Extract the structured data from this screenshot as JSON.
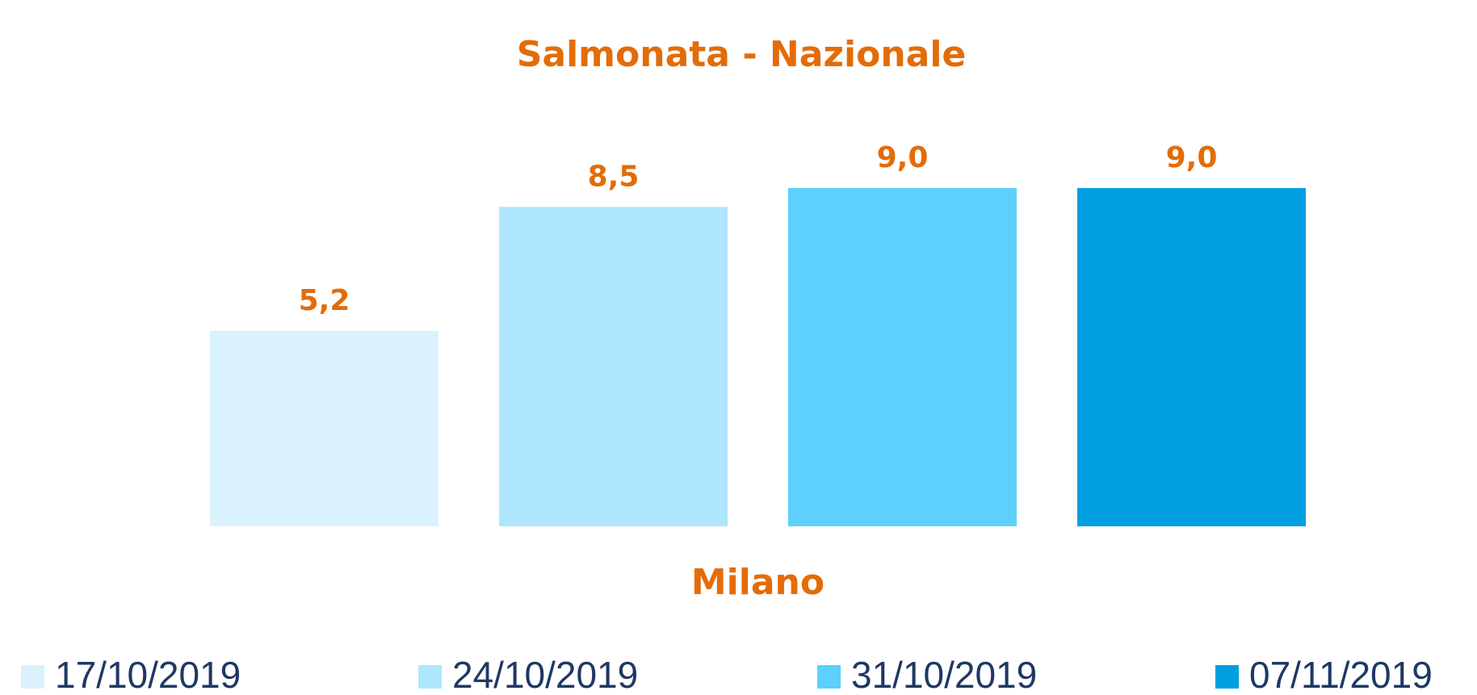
{
  "chart_data": {
    "type": "bar",
    "title": "Salmonata - Nazionale",
    "categories": [
      "Milano"
    ],
    "series": [
      {
        "name": "17/10/2019",
        "color": "#daf2fd",
        "values": [
          5.2
        ],
        "value_labels": [
          "5,2"
        ]
      },
      {
        "name": "24/10/2019",
        "color": "#aee6fd",
        "values": [
          8.5
        ],
        "value_labels": [
          "8,5"
        ]
      },
      {
        "name": "31/10/2019",
        "color": "#5dd0fd",
        "values": [
          9.0
        ],
        "value_labels": [
          "9,0"
        ]
      },
      {
        "name": "07/11/2019",
        "color": "#009fe0",
        "values": [
          9.0
        ],
        "value_labels": [
          "9,0"
        ]
      }
    ],
    "legend": "bottom",
    "grid": false
  }
}
